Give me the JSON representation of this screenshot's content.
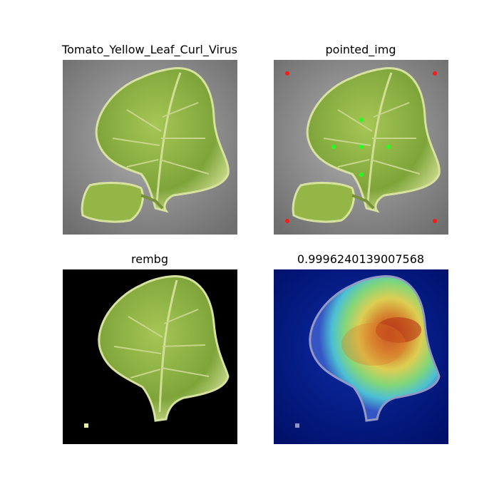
{
  "panels": [
    {
      "title": "Tomato_Yellow_Leaf_Curl_Virus",
      "kind": "original"
    },
    {
      "title": "pointed_img",
      "kind": "points"
    },
    {
      "title": "rembg",
      "kind": "background-removed"
    },
    {
      "title": "0.9996240139007568",
      "kind": "heatmap"
    }
  ],
  "colors": {
    "leaf": "#8fb34a",
    "leaf_dark": "#6b8f2e",
    "vein": "#c9d88a",
    "gray_bg": "#9a9a9a",
    "red_point": "#ff1a1a",
    "green_point": "#22ff22",
    "heat_bg": "#00146e"
  }
}
